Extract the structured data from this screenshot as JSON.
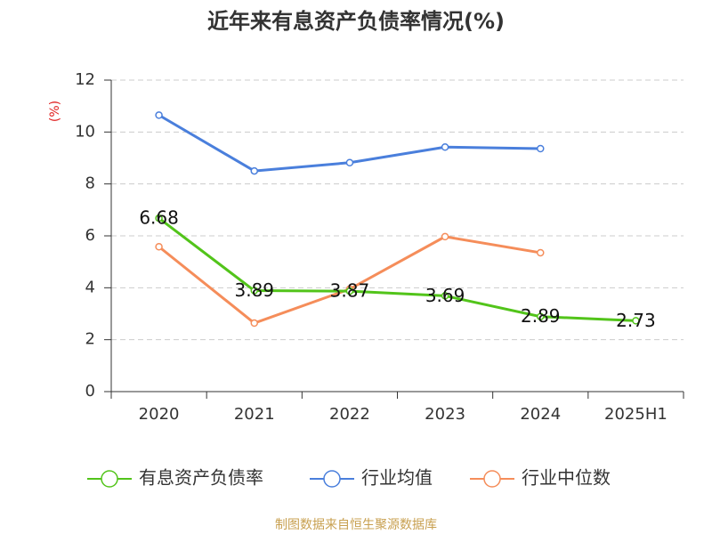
{
  "chart_data": {
    "type": "line",
    "title": "近年来有息资产负债率情况(%)",
    "y_label": "(%)",
    "source": "制图数据来自恒生聚源数据库",
    "categories": [
      "2020",
      "2021",
      "2022",
      "2023",
      "2024",
      "2025H1"
    ],
    "series": [
      {
        "name": "有息资产负债率",
        "color": "#52c41a",
        "values": [
          6.68,
          3.89,
          3.87,
          3.69,
          2.89,
          2.73
        ],
        "show_labels": true
      },
      {
        "name": "行业均值",
        "color": "#4a7fdc",
        "values": [
          10.65,
          8.5,
          8.82,
          9.42,
          9.36,
          null
        ],
        "show_labels": false
      },
      {
        "name": "行业中位数",
        "color": "#f58d5a",
        "values": [
          5.58,
          2.64,
          3.95,
          5.97,
          5.35,
          null
        ],
        "show_labels": false
      }
    ],
    "ylim": [
      0,
      12
    ],
    "yticks": [
      0,
      2,
      4,
      6,
      8,
      10,
      12
    ],
    "grid": true
  }
}
